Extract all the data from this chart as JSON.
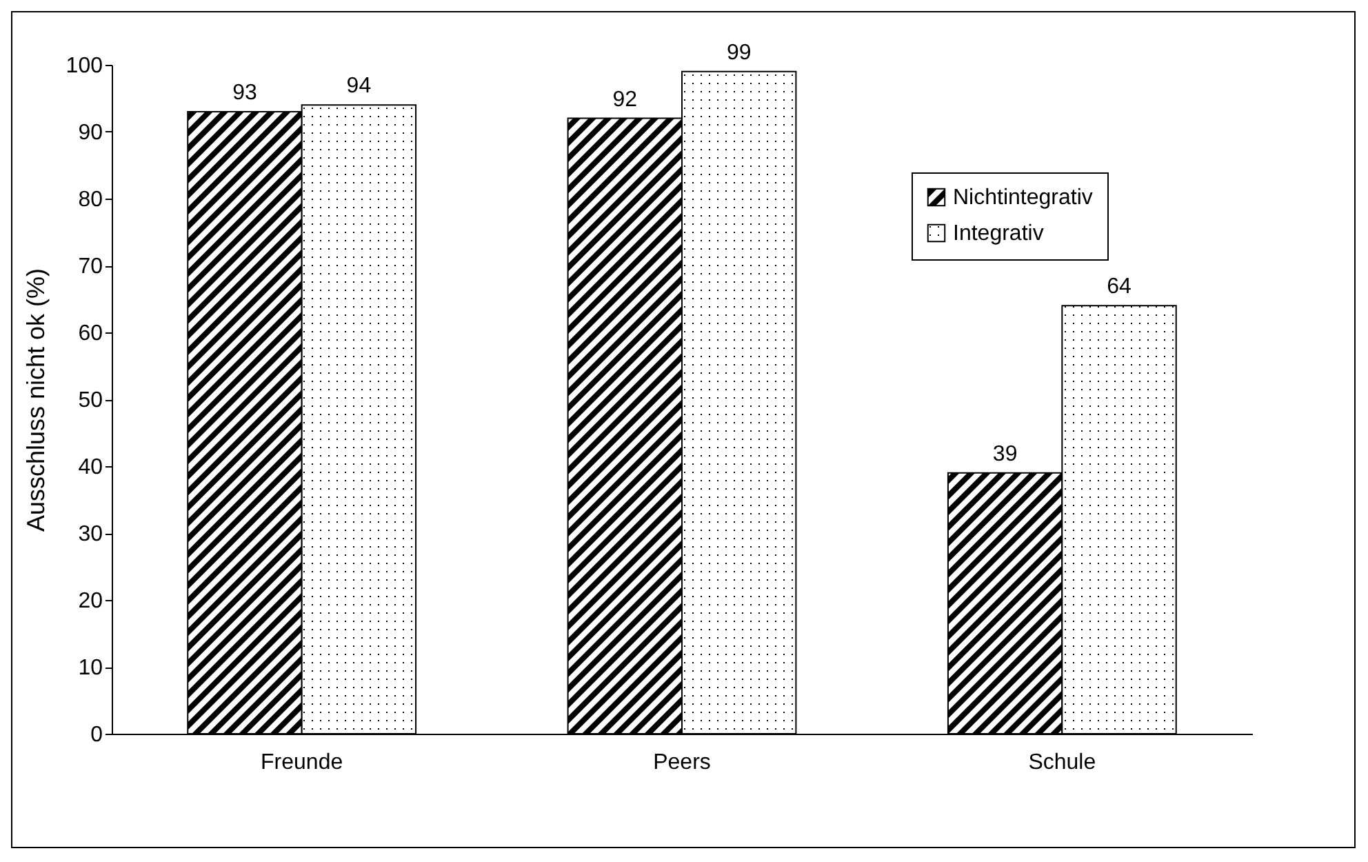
{
  "chart_data": {
    "type": "bar",
    "ylabel": "Ausschluss nicht ok (%)",
    "categories": [
      "Freunde",
      "Peers",
      "Schule"
    ],
    "series": [
      {
        "name": "Nichtintegrativ",
        "color": "#000000",
        "values": [
          93,
          92,
          39
        ]
      },
      {
        "name": "Integrativ",
        "color": "#000000",
        "values": [
          94,
          99,
          64
        ]
      }
    ],
    "ylim": [
      0,
      100
    ],
    "yticks": [
      0,
      10,
      20,
      30,
      40,
      50,
      60,
      70,
      80,
      90,
      100
    ],
    "data_labels": true,
    "legend": "top right",
    "grid": false
  }
}
